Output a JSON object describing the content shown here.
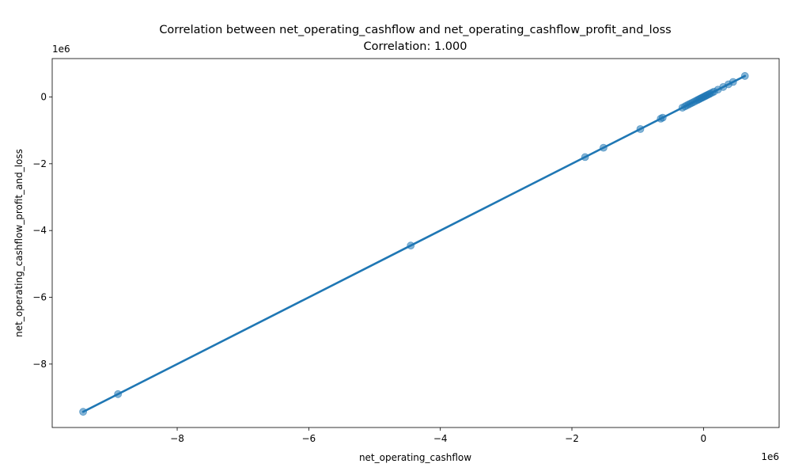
{
  "chart_data": {
    "type": "scatter",
    "title": "Correlation between net_operating_cashflow and net_operating_cashflow_profit_and_loss",
    "subtitle": "Correlation: 1.000",
    "xlabel": "net_operating_cashflow",
    "ylabel": "net_operating_cashflow_profit_and_loss",
    "x_offset_label": "1e6",
    "y_offset_label": "1e6",
    "xlim": [
      -9.9,
      1.15
    ],
    "ylim": [
      -9.9,
      1.15
    ],
    "scale": 1000000,
    "x_ticks": [
      -8,
      -6,
      -4,
      -2,
      0
    ],
    "y_ticks": [
      -8,
      -6,
      -4,
      -2,
      0
    ],
    "x_tick_labels": [
      "−8",
      "−6",
      "−4",
      "−2",
      "0"
    ],
    "y_tick_labels": [
      "−8",
      "−6",
      "−4",
      "−2",
      "0"
    ],
    "grid": false,
    "point_color": "#1f77b4",
    "line_color": "#1f77b4",
    "regression_line": {
      "x": [
        -9.43,
        0.63
      ],
      "y": [
        -9.43,
        0.63
      ]
    },
    "points": [
      {
        "x": -9.43,
        "y": -9.43
      },
      {
        "x": -8.9,
        "y": -8.9
      },
      {
        "x": -4.45,
        "y": -4.45
      },
      {
        "x": -1.8,
        "y": -1.8
      },
      {
        "x": -1.52,
        "y": -1.52
      },
      {
        "x": -0.96,
        "y": -0.96
      },
      {
        "x": -0.65,
        "y": -0.65
      },
      {
        "x": -0.62,
        "y": -0.62
      },
      {
        "x": -0.32,
        "y": -0.32
      },
      {
        "x": -0.28,
        "y": -0.28
      },
      {
        "x": -0.25,
        "y": -0.25
      },
      {
        "x": -0.22,
        "y": -0.22
      },
      {
        "x": -0.19,
        "y": -0.19
      },
      {
        "x": -0.16,
        "y": -0.16
      },
      {
        "x": -0.13,
        "y": -0.13
      },
      {
        "x": -0.1,
        "y": -0.1
      },
      {
        "x": -0.08,
        "y": -0.08
      },
      {
        "x": -0.06,
        "y": -0.06
      },
      {
        "x": -0.04,
        "y": -0.04
      },
      {
        "x": -0.02,
        "y": -0.02
      },
      {
        "x": 0.0,
        "y": 0.0
      },
      {
        "x": 0.02,
        "y": 0.02
      },
      {
        "x": 0.04,
        "y": 0.04
      },
      {
        "x": 0.06,
        "y": 0.06
      },
      {
        "x": 0.08,
        "y": 0.08
      },
      {
        "x": 0.1,
        "y": 0.1
      },
      {
        "x": 0.13,
        "y": 0.13
      },
      {
        "x": 0.16,
        "y": 0.16
      },
      {
        "x": 0.22,
        "y": 0.22
      },
      {
        "x": 0.3,
        "y": 0.3
      },
      {
        "x": 0.38,
        "y": 0.38
      },
      {
        "x": 0.45,
        "y": 0.45
      },
      {
        "x": 0.63,
        "y": 0.63
      }
    ]
  }
}
